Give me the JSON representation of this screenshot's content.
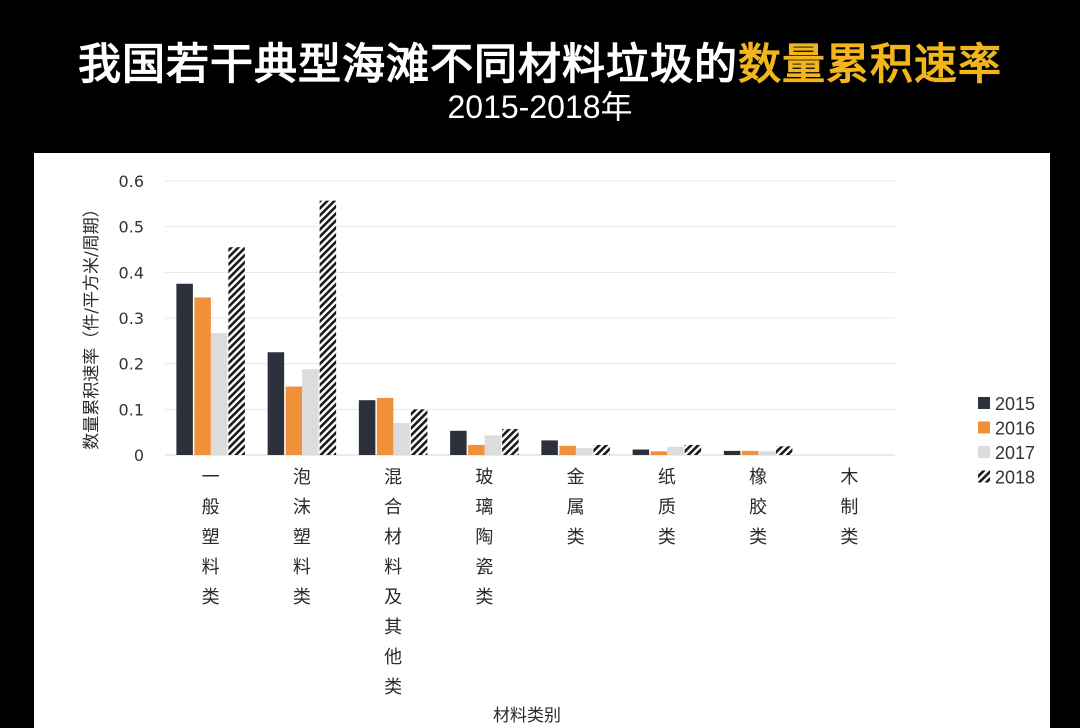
{
  "title": {
    "main": "我国若干典型海滩不同材料垃圾的",
    "highlight": "数量累积速率",
    "subtitle": "2015-2018年"
  },
  "colors": {
    "highlight": "#f2b51c",
    "2015": "#2b303a",
    "2016": "#f0913a",
    "2017": "#dcdcdc",
    "2018": "hatched-black"
  },
  "chart_data": {
    "type": "bar",
    "categories": [
      "一般塑料类",
      "泡沫塑料类",
      "混合材料及其他类",
      "玻璃陶瓷类",
      "金属类",
      "纸质类",
      "橡胶类",
      "木制类"
    ],
    "series": [
      {
        "name": "2015",
        "values": [
          0.375,
          0.225,
          0.12,
          0.053,
          0.032,
          0.012,
          0.009,
          0
        ]
      },
      {
        "name": "2016",
        "values": [
          0.345,
          0.15,
          0.125,
          0.022,
          0.02,
          0.008,
          0.009,
          0
        ]
      },
      {
        "name": "2017",
        "values": [
          0.267,
          0.188,
          0.07,
          0.043,
          0.015,
          0.018,
          0.008,
          0
        ]
      },
      {
        "name": "2018",
        "values": [
          0.455,
          0.557,
          0.1,
          0.057,
          0.022,
          0.022,
          0.019,
          0
        ]
      }
    ],
    "xlabel": "材料类别",
    "ylabel": "数量累积速率（件/平方米/周期）",
    "yticks": [
      "0",
      "0.1",
      "0.2",
      "0.3",
      "0.4",
      "0.5",
      "0.6"
    ],
    "ylim": [
      0,
      0.6
    ],
    "grid": true,
    "legend": "right"
  }
}
